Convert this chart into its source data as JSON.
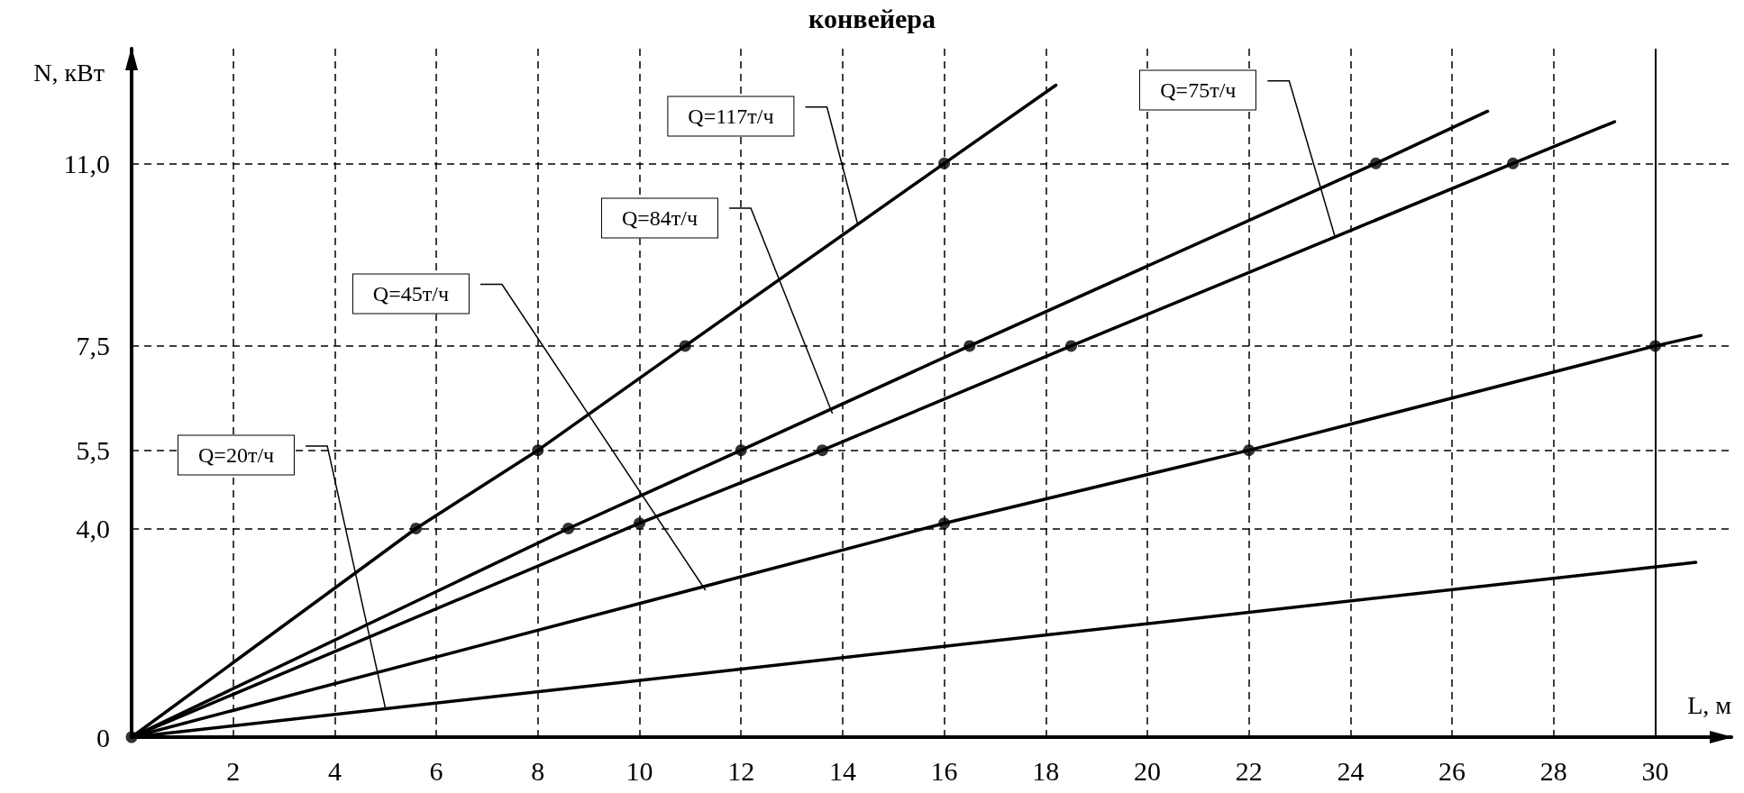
{
  "chart_data": {
    "type": "line",
    "title": "конвейера",
    "xlabel": "L, м",
    "ylabel": "N, кВт",
    "xlim": [
      0,
      31.5
    ],
    "ylim": [
      0,
      13.2
    ],
    "xticks": [
      2,
      4,
      6,
      8,
      10,
      12,
      14,
      16,
      18,
      20,
      22,
      24,
      26,
      28,
      30
    ],
    "yticks": [
      {
        "value": 0,
        "label": "0"
      },
      {
        "value": 4,
        "label": "4,0"
      },
      {
        "value": 5.5,
        "label": "5,5"
      },
      {
        "value": 7.5,
        "label": "7,5"
      },
      {
        "value": 11,
        "label": "11,0"
      }
    ],
    "grid": true,
    "legend": false,
    "marker": "none",
    "line_style": "solid",
    "ref_lines": [
      {
        "axis": "x",
        "value": 30,
        "label": null,
        "color": "#000000",
        "line_style": "solid"
      }
    ],
    "series": [
      {
        "name": "Q=117т/ч",
        "color": "#000000",
        "x": [
          0,
          5.6,
          8,
          10.9,
          16,
          18.2
        ],
        "values": [
          0,
          4,
          5.5,
          7.5,
          11,
          12.5
        ]
      },
      {
        "name": "Q=84т/ч",
        "color": "#000000",
        "x": [
          0,
          8.6,
          12,
          16.5,
          24.5,
          26.7
        ],
        "values": [
          0,
          4,
          5.5,
          7.5,
          11,
          12.0
        ]
      },
      {
        "name": "Q=75т/ч",
        "color": "#000000",
        "x": [
          0,
          10,
          13.6,
          18.5,
          27.2,
          29.2
        ],
        "values": [
          0,
          4.1,
          5.5,
          7.5,
          11,
          11.8
        ]
      },
      {
        "name": "Q=45т/ч",
        "color": "#000000",
        "x": [
          0,
          16,
          22,
          30,
          30.9
        ],
        "values": [
          0,
          4.1,
          5.5,
          7.5,
          7.7
        ]
      },
      {
        "name": "Q=20т/ч",
        "color": "#000000",
        "x": [
          0,
          30.8
        ],
        "values": [
          0,
          3.35
        ]
      },
      {
        "type": "scatter",
        "marker": "circle",
        "color": "#000000",
        "x": [
          0,
          5.6,
          8,
          10.9,
          16,
          8.6,
          12,
          16.5,
          24.5,
          10,
          13.6,
          18.5,
          27.2,
          16,
          22,
          30
        ],
        "values": [
          0,
          4,
          5.5,
          7.5,
          11,
          4,
          5.5,
          7.5,
          11,
          4.1,
          5.5,
          7.5,
          11,
          4.1,
          5.5,
          7.5
        ]
      }
    ]
  }
}
